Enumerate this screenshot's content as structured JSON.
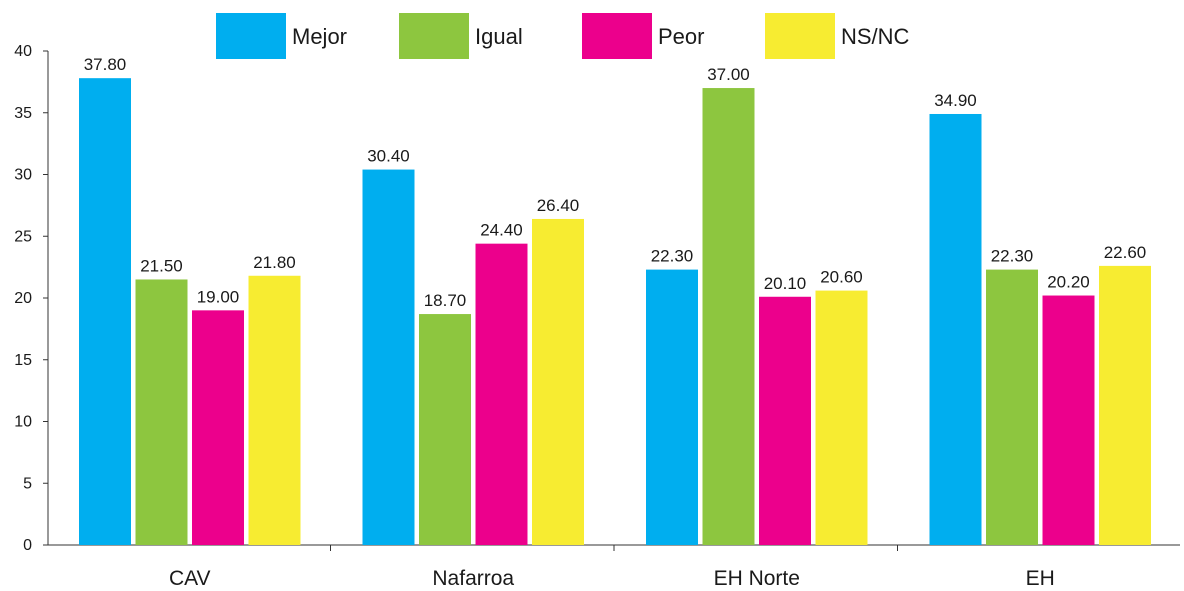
{
  "chart_data": {
    "type": "bar",
    "categories": [
      "CAV",
      "Nafarroa",
      "EH Norte",
      "EH"
    ],
    "series": [
      {
        "name": "Mejor",
        "color": "#00aeef",
        "values": [
          37.8,
          30.4,
          22.3,
          34.9
        ],
        "labels": [
          "37.80",
          "30.40",
          "22.30",
          "34.90"
        ]
      },
      {
        "name": "Igual",
        "color": "#8dc63f",
        "values": [
          21.5,
          18.7,
          37.0,
          22.3
        ],
        "labels": [
          "21.50",
          "18.70",
          "37.00",
          "22.30"
        ]
      },
      {
        "name": "Peor",
        "color": "#ec008c",
        "values": [
          19.0,
          24.4,
          20.1,
          20.2
        ],
        "labels": [
          "19.00",
          "24.40",
          "20.10",
          "20.20"
        ]
      },
      {
        "name": "NS/NC",
        "color": "#f7ec31",
        "values": [
          21.8,
          26.4,
          20.6,
          22.6
        ],
        "labels": [
          "21.80",
          "26.40",
          "20.60",
          "22.60"
        ]
      }
    ],
    "ylim": [
      0,
      40
    ],
    "yticks": [
      0,
      5,
      10,
      15,
      20,
      25,
      30,
      35,
      40
    ],
    "grid": false,
    "legend_position": "top"
  }
}
